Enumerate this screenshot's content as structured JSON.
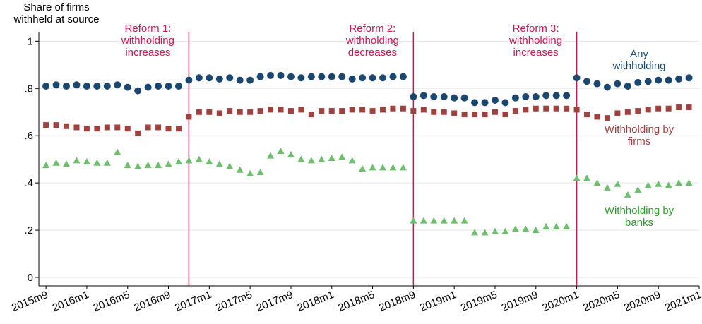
{
  "chart_data": {
    "type": "scatter",
    "title": "Share of firms withheld at source",
    "x": [
      668,
      669,
      670,
      671,
      672,
      673,
      674,
      675,
      676,
      677,
      678,
      679,
      680,
      681,
      682,
      683,
      684,
      685,
      686,
      687,
      688,
      689,
      690,
      691,
      692,
      693,
      694,
      695,
      696,
      697,
      698,
      699,
      700,
      701,
      702,
      703,
      704,
      705,
      706,
      707,
      708,
      709,
      710,
      711,
      712,
      713,
      714,
      715,
      716,
      717,
      718,
      719,
      720,
      721,
      722,
      723,
      724,
      725,
      726,
      727,
      728,
      729,
      730,
      731
    ],
    "xlim": [
      667.3,
      732
    ],
    "xticks": [
      {
        "value": 668,
        "label": "2015m9"
      },
      {
        "value": 672,
        "label": "2016m1"
      },
      {
        "value": 676,
        "label": "2016m5"
      },
      {
        "value": 680,
        "label": "2016m9"
      },
      {
        "value": 684,
        "label": "2017m1"
      },
      {
        "value": 688,
        "label": "2017m5"
      },
      {
        "value": 692,
        "label": "2017m9"
      },
      {
        "value": 696,
        "label": "2018m1"
      },
      {
        "value": 700,
        "label": "2018m5"
      },
      {
        "value": 704,
        "label": "2018m9"
      },
      {
        "value": 708,
        "label": "2019m1"
      },
      {
        "value": 712,
        "label": "2019m5"
      },
      {
        "value": 716,
        "label": "2019m9"
      },
      {
        "value": 720,
        "label": "2020m1"
      },
      {
        "value": 724,
        "label": "2020m5"
      },
      {
        "value": 728,
        "label": "2020m9"
      },
      {
        "value": 732,
        "label": "2021m1"
      }
    ],
    "ylim": [
      -0.036,
      1.04
    ],
    "yticks": [
      0,
      {
        "value": 0.2,
        "label": ".2"
      },
      {
        "value": 0.4,
        "label": ".4"
      },
      {
        "value": 0.6,
        "label": ".6"
      },
      {
        "value": 0.8,
        "label": ".8"
      },
      1
    ],
    "grid": true,
    "series": [
      {
        "name": "Any withholding",
        "color": "#1a476f",
        "marker": "circle",
        "values": [
          0.81,
          0.815,
          0.81,
          0.815,
          0.81,
          0.81,
          0.81,
          0.815,
          0.805,
          0.79,
          0.805,
          0.81,
          0.81,
          0.81,
          0.835,
          0.845,
          0.845,
          0.84,
          0.845,
          0.835,
          0.835,
          0.85,
          0.855,
          0.855,
          0.85,
          0.845,
          0.85,
          0.85,
          0.85,
          0.85,
          0.84,
          0.845,
          0.845,
          0.845,
          0.85,
          0.85,
          0.765,
          0.77,
          0.765,
          0.765,
          0.76,
          0.76,
          0.74,
          0.74,
          0.75,
          0.74,
          0.76,
          0.765,
          0.765,
          0.77,
          0.77,
          0.77,
          0.845,
          0.83,
          0.82,
          0.805,
          0.82,
          0.81,
          0.825,
          0.83,
          0.835,
          0.835,
          0.84,
          0.845
        ]
      },
      {
        "name": "Withholding by firms",
        "color": "#a0413e",
        "marker": "square",
        "values": [
          0.645,
          0.645,
          0.64,
          0.635,
          0.63,
          0.63,
          0.635,
          0.635,
          0.63,
          0.61,
          0.635,
          0.635,
          0.63,
          0.63,
          0.68,
          0.7,
          0.7,
          0.695,
          0.705,
          0.7,
          0.7,
          0.705,
          0.71,
          0.71,
          0.705,
          0.71,
          0.69,
          0.705,
          0.705,
          0.705,
          0.71,
          0.71,
          0.705,
          0.71,
          0.715,
          0.715,
          0.705,
          0.71,
          0.7,
          0.7,
          0.695,
          0.69,
          0.69,
          0.69,
          0.7,
          0.69,
          0.705,
          0.71,
          0.715,
          0.715,
          0.715,
          0.715,
          0.71,
          0.69,
          0.68,
          0.675,
          0.695,
          0.7,
          0.705,
          0.71,
          0.715,
          0.715,
          0.72,
          0.72
        ]
      },
      {
        "name": "Withholding by banks",
        "color": "#2ca02c",
        "marker": "triangle",
        "marker_color": "#6cbf6c",
        "values": [
          0.475,
          0.485,
          0.48,
          0.495,
          0.49,
          0.485,
          0.485,
          0.53,
          0.475,
          0.47,
          0.475,
          0.475,
          0.48,
          0.49,
          0.495,
          0.5,
          0.49,
          0.48,
          0.47,
          0.455,
          0.44,
          0.445,
          0.515,
          0.535,
          0.52,
          0.5,
          0.495,
          0.5,
          0.505,
          0.51,
          0.495,
          0.46,
          0.465,
          0.465,
          0.465,
          0.465,
          0.24,
          0.24,
          0.24,
          0.24,
          0.24,
          0.24,
          0.19,
          0.19,
          0.195,
          0.195,
          0.205,
          0.205,
          0.2,
          0.215,
          0.215,
          0.215,
          0.42,
          0.42,
          0.4,
          0.38,
          0.395,
          0.35,
          0.37,
          0.39,
          0.395,
          0.39,
          0.4,
          0.4
        ]
      }
    ],
    "annotations": [
      {
        "text": "Reform 1: withholding increases",
        "x": 682,
        "color": "#c8174f"
      },
      {
        "text": "Reform 2: withholding decreases",
        "x": 704,
        "color": "#c8174f"
      },
      {
        "text": "Reform 3: withholding increases",
        "x": 720,
        "color": "#c8174f"
      }
    ]
  }
}
